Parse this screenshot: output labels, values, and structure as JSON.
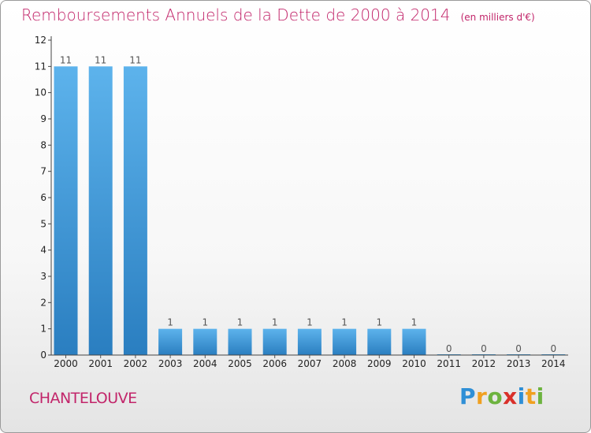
{
  "chart_data": {
    "type": "bar",
    "title": "Remboursements Annuels de la Dette de 2000 à 2014",
    "unit": "(en milliers d'€)",
    "categories": [
      "2000",
      "2001",
      "2002",
      "2003",
      "2004",
      "2005",
      "2006",
      "2007",
      "2008",
      "2009",
      "2010",
      "2011",
      "2012",
      "2013",
      "2014"
    ],
    "values": [
      11,
      11,
      11,
      1,
      1,
      1,
      1,
      1,
      1,
      1,
      1,
      0,
      0,
      0,
      0
    ],
    "ylim": [
      0,
      12
    ],
    "yticks": [
      0,
      1,
      2,
      3,
      4,
      5,
      6,
      7,
      8,
      9,
      10,
      11,
      12
    ],
    "grid": false,
    "bar_color": "#3b97d9",
    "bar_color_light": "#5db3ec",
    "bar_color_dark": "#2a7ec0"
  },
  "commune": "CHANTELOUVE",
  "logo": {
    "letters": [
      "P",
      "r",
      "o",
      "x",
      "i",
      "t",
      "i"
    ],
    "colors": [
      "#2f8fd6",
      "#f0a020",
      "#6db33f",
      "#d9302a",
      "#2f8fd6",
      "#f0a020",
      "#6db33f"
    ]
  }
}
